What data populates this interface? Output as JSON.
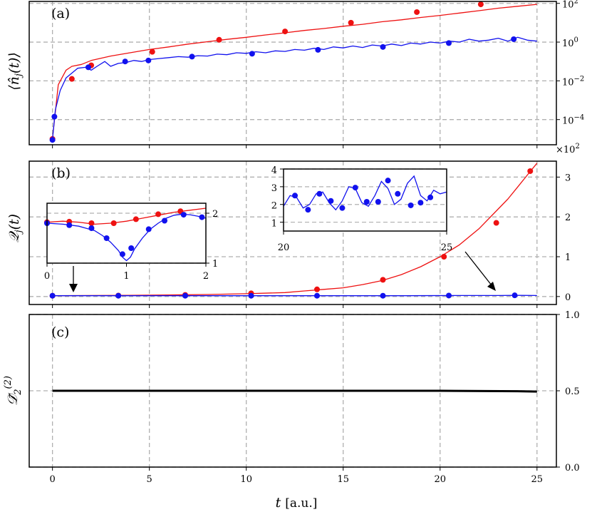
{
  "figure": {
    "x_label_var": "t",
    "x_label_unit": "[a.u.]",
    "x_ticks": [
      "0",
      "5",
      "10",
      "15",
      "20",
      "25"
    ]
  },
  "chart_data": [
    {
      "panel": "a",
      "type": "line",
      "label": "(a)",
      "ylabel": "⟨n̂_j(t)⟩",
      "yscale": "log",
      "xlim": [
        -1.2,
        26.0
      ],
      "ylim": [
        -5.3,
        2.1
      ],
      "y_ticks": [
        {
          "value": 2,
          "label": "10^2"
        },
        {
          "value": 0,
          "label": "10^0"
        },
        {
          "value": -2,
          "label": "10^-2"
        },
        {
          "value": -4,
          "label": "10^-4"
        }
      ],
      "grid": true,
      "series": [
        {
          "color": "#ee1111",
          "x": [
            0,
            0.3,
            0.7,
            1.0,
            1.5,
            2.0,
            3.0,
            4.0,
            5.0,
            6.0,
            7.0,
            8.0,
            9.0,
            10.0,
            11.0,
            12.0,
            13.0,
            14.0,
            15.0,
            16.0,
            17.0,
            18.0,
            19.0,
            20.0,
            21.0,
            22.0,
            23.0,
            24.0,
            25.0
          ],
          "y": [
            -5.0,
            -2.2,
            -1.45,
            -1.25,
            -1.15,
            -0.95,
            -0.72,
            -0.55,
            -0.38,
            -0.25,
            -0.1,
            0.02,
            0.14,
            0.25,
            0.37,
            0.48,
            0.6,
            0.7,
            0.82,
            0.92,
            1.05,
            1.15,
            1.27,
            1.38,
            1.5,
            1.62,
            1.75,
            1.85,
            1.95
          ],
          "marker_x": [
            0,
            1.0,
            2.0,
            5.15,
            8.6,
            12.0,
            15.4,
            18.8,
            22.1
          ],
          "marker_y": [
            -5.0,
            -1.9,
            -1.2,
            -0.5,
            0.12,
            0.55,
            1.0,
            1.55,
            1.95
          ]
        },
        {
          "color": "#1111ee",
          "x": [
            0,
            0.15,
            0.4,
            0.7,
            1.0,
            1.3,
            1.7,
            2.0,
            2.3,
            2.7,
            3.0,
            3.4,
            3.8,
            4.2,
            4.6,
            5.0,
            5.5,
            6.0,
            6.5,
            7.0,
            7.5,
            8.0,
            8.5,
            9.0,
            9.5,
            10.0,
            10.5,
            11.0,
            11.5,
            12.0,
            12.5,
            13.0,
            13.5,
            14.0,
            14.5,
            15.0,
            15.5,
            16.0,
            16.5,
            17.0,
            17.5,
            18.0,
            18.5,
            19.0,
            19.5,
            20.0,
            20.5,
            21.0,
            21.5,
            22.0,
            22.5,
            23.0,
            23.5,
            24.0,
            24.5,
            25.0
          ],
          "y": [
            -5.05,
            -3.5,
            -2.5,
            -1.85,
            -1.6,
            -1.35,
            -1.3,
            -1.45,
            -1.25,
            -1.0,
            -1.25,
            -1.1,
            -1.05,
            -0.95,
            -1.0,
            -0.9,
            -0.85,
            -0.8,
            -0.75,
            -0.78,
            -0.7,
            -0.72,
            -0.62,
            -0.65,
            -0.55,
            -0.58,
            -0.5,
            -0.55,
            -0.45,
            -0.48,
            -0.38,
            -0.42,
            -0.32,
            -0.38,
            -0.25,
            -0.3,
            -0.2,
            -0.28,
            -0.15,
            -0.2,
            -0.1,
            -0.18,
            -0.05,
            -0.1,
            0.0,
            -0.05,
            0.05,
            0.0,
            0.15,
            0.05,
            0.1,
            0.2,
            0.05,
            0.25,
            0.1,
            0.05
          ],
          "marker_x": [
            0,
            0.1,
            1.85,
            3.75,
            4.95,
            7.2,
            10.3,
            13.7,
            17.05,
            20.45,
            23.8
          ],
          "marker_y": [
            -5.05,
            -3.85,
            -1.3,
            -1.0,
            -0.95,
            -0.75,
            -0.6,
            -0.4,
            -0.25,
            -0.05,
            0.15
          ]
        }
      ]
    },
    {
      "panel": "b",
      "type": "line",
      "label": "(b)",
      "ylabel": "Q_j(t)",
      "xlim": [
        -1.2,
        26.0
      ],
      "ylim": [
        -0.2,
        3.4
      ],
      "multiplier": "×10^2",
      "y_ticks": [
        {
          "value": 0,
          "label": "0"
        },
        {
          "value": 1,
          "label": "1"
        },
        {
          "value": 2,
          "label": "2"
        },
        {
          "value": 3,
          "label": "3"
        }
      ],
      "grid": true,
      "series": [
        {
          "color": "#ee1111",
          "x": [
            0,
            2,
            4,
            6,
            8,
            10,
            12,
            13,
            14,
            15,
            16,
            17,
            18,
            19,
            20,
            21,
            22,
            23,
            23.5,
            24,
            24.5,
            25
          ],
          "y": [
            0.02,
            0.025,
            0.03,
            0.04,
            0.05,
            0.07,
            0.1,
            0.14,
            0.18,
            0.22,
            0.3,
            0.4,
            0.55,
            0.75,
            1.0,
            1.3,
            1.7,
            2.2,
            2.45,
            2.75,
            3.05,
            3.35
          ],
          "marker_x": [
            0,
            3.4,
            6.85,
            10.25,
            13.65,
            17.05,
            20.2,
            22.9,
            24.65
          ],
          "marker_y": [
            0.02,
            0.025,
            0.04,
            0.08,
            0.18,
            0.42,
            1.0,
            1.85,
            3.15
          ]
        },
        {
          "color": "#1111ee",
          "x": [
            0,
            3,
            6,
            9,
            12,
            15,
            18,
            21,
            23,
            24,
            25
          ],
          "y": [
            0.02,
            0.02,
            0.02,
            0.02,
            0.02,
            0.02,
            0.02,
            0.025,
            0.025,
            0.03,
            0.025
          ],
          "marker_x": [
            0,
            3.4,
            6.85,
            10.25,
            13.65,
            17.05,
            20.45,
            23.85
          ],
          "marker_y": [
            0.02,
            0.02,
            0.02,
            0.02,
            0.02,
            0.02,
            0.025,
            0.03
          ]
        }
      ],
      "insets": [
        {
          "name": "inset-left",
          "xlim": [
            0,
            2
          ],
          "ylim": [
            1,
            2.2
          ],
          "x_ticks": [
            "0",
            "1",
            "2"
          ],
          "y_ticks": [
            "1",
            "2"
          ],
          "series": [
            {
              "color": "#ee1111",
              "x": [
                0,
                0.2,
                0.4,
                0.6,
                0.8,
                1.0,
                1.2,
                1.4,
                1.6,
                1.8,
                2.0
              ],
              "y": [
                1.82,
                1.84,
                1.82,
                1.78,
                1.8,
                1.84,
                1.9,
                1.96,
                2.02,
                2.06,
                2.1
              ],
              "marker_x": [
                0,
                0.28,
                0.56,
                0.84,
                1.12,
                1.4,
                1.68
              ],
              "marker_y": [
                1.82,
                1.83,
                1.8,
                1.8,
                1.88,
                1.98,
                2.04
              ]
            },
            {
              "color": "#1111ee",
              "x": [
                0,
                0.2,
                0.4,
                0.6,
                0.7,
                0.8,
                0.9,
                0.95,
                1.0,
                1.05,
                1.1,
                1.2,
                1.3,
                1.4,
                1.5,
                1.6,
                1.7,
                1.8,
                1.9,
                2.0
              ],
              "y": [
                1.8,
                1.78,
                1.74,
                1.65,
                1.55,
                1.42,
                1.25,
                1.12,
                1.05,
                1.12,
                1.28,
                1.5,
                1.68,
                1.8,
                1.9,
                1.96,
                1.98,
                1.97,
                1.94,
                1.9
              ],
              "marker_x": [
                0,
                0.28,
                0.56,
                0.75,
                0.95,
                1.06,
                1.28,
                1.48,
                1.72,
                1.95
              ],
              "marker_y": [
                1.8,
                1.76,
                1.7,
                1.5,
                1.18,
                1.3,
                1.68,
                1.85,
                1.97,
                1.92
              ]
            }
          ]
        },
        {
          "name": "inset-right",
          "xlim": [
            20,
            25
          ],
          "ylim": [
            0.5,
            4
          ],
          "x_ticks": [
            "20",
            "25"
          ],
          "y_ticks": [
            "1",
            "2",
            "3",
            "4"
          ],
          "series": [
            {
              "color": "#1111ee",
              "x": [
                20,
                20.2,
                20.4,
                20.6,
                20.8,
                21.0,
                21.2,
                21.4,
                21.6,
                21.8,
                22.0,
                22.2,
                22.4,
                22.6,
                22.8,
                23.0,
                23.2,
                23.4,
                23.6,
                23.8,
                24.0,
                24.2,
                24.4,
                24.6,
                24.8,
                25.0
              ],
              "y": [
                1.9,
                2.5,
                2.4,
                1.8,
                2.0,
                2.6,
                2.7,
                2.1,
                1.7,
                2.2,
                3.0,
                2.9,
                2.1,
                1.9,
                2.5,
                3.3,
                2.9,
                2.0,
                2.3,
                3.2,
                3.6,
                2.5,
                2.2,
                2.8,
                2.6,
                2.7
              ],
              "marker_x": [
                20.35,
                20.75,
                21.1,
                21.45,
                21.8,
                22.2,
                22.55,
                22.9,
                23.2,
                23.5,
                23.9,
                24.2,
                24.5
              ],
              "marker_y": [
                2.5,
                1.7,
                2.6,
                2.2,
                1.8,
                2.95,
                2.15,
                2.15,
                3.35,
                2.6,
                1.95,
                2.1,
                2.4
              ]
            }
          ]
        }
      ]
    },
    {
      "panel": "c",
      "type": "line",
      "label": "(c)",
      "ylabel": "D̃_2^(2)",
      "xlim": [
        -1.2,
        26.0
      ],
      "ylim": [
        0.0,
        1.0
      ],
      "y_ticks": [
        {
          "value": 0.0,
          "label": "0.0"
        },
        {
          "value": 0.5,
          "label": "0.5"
        },
        {
          "value": 1.0,
          "label": "1.0"
        }
      ],
      "grid": true,
      "series": [
        {
          "color": "#000000",
          "x": [
            0,
            5,
            10,
            15,
            20,
            24,
            25
          ],
          "y": [
            0.5,
            0.5,
            0.5,
            0.5,
            0.5,
            0.497,
            0.495
          ]
        }
      ]
    }
  ]
}
